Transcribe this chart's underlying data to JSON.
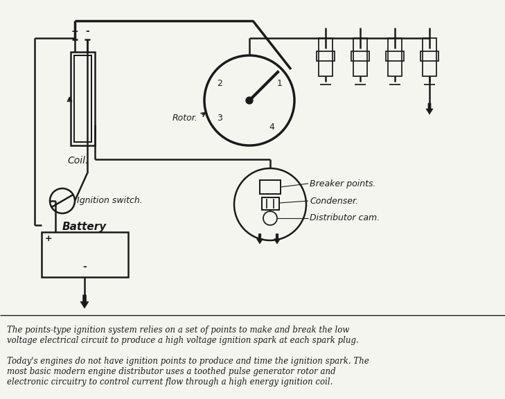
{
  "bg_color": "#f5f5f0",
  "line_color": "#1a1a1a",
  "text_color": "#1a1a1a",
  "caption1": "The points-type ignition system relies on a set of points to make and break the low\nvoltage electrical circuit to produce a high voltage ignition spark at each spark plug.",
  "caption2": "Today's engines do not have ignition points to produce and time the ignition spark. The\nmost basic modern engine distributor uses a toothed pulse generator rotor and\nelectronic circuitry to control current flow through a high energy ignition coil.",
  "labels": {
    "coil": "Coil.",
    "ignition_switch": "Ignition switch.",
    "battery": "Battery",
    "rotor": "Rotor.",
    "breaker_points": "Breaker points.",
    "condenser": "Condenser.",
    "distributor_cam": "Distributor cam."
  }
}
